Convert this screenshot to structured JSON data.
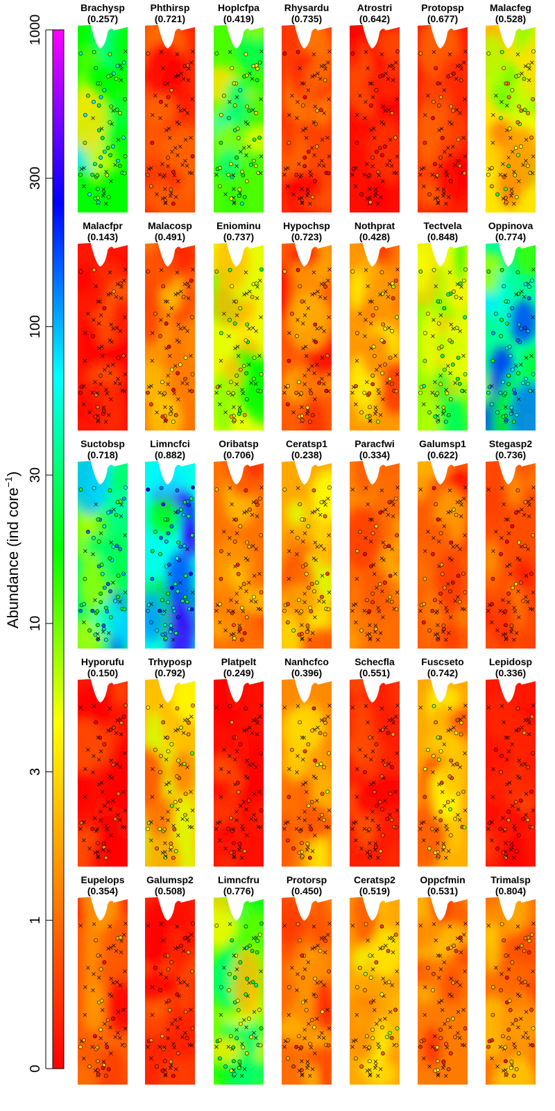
{
  "chart_data": {
    "type": "heatmap",
    "ylabel": "Abundance (ind core",
    "ylabel_sup": "−1",
    "ylabel_close": ")",
    "colorbar": {
      "ticks": [
        "0",
        "1",
        "3",
        "10",
        "30",
        "100",
        "300",
        "1000"
      ],
      "tick_values": [
        0,
        1,
        3,
        10,
        30,
        100,
        300,
        1000
      ],
      "colors": [
        "#ff0000",
        "#ff8000",
        "#ffff00",
        "#00ff00",
        "#00ffff",
        "#0000ff",
        "#ff00ff"
      ]
    },
    "species": [
      {
        "name": "Brachysp",
        "value": "(0.257)",
        "mean_level": 0.5
      },
      {
        "name": "Phthirsp",
        "value": "(0.721)",
        "mean_level": 0.05
      },
      {
        "name": "Hoplcfpa",
        "value": "(0.419)",
        "mean_level": 0.45
      },
      {
        "name": "Rhysardu",
        "value": "(0.735)",
        "mean_level": 0.08
      },
      {
        "name": "Atrostri",
        "value": "(0.642)",
        "mean_level": 0.02
      },
      {
        "name": "Protopsp",
        "value": "(0.677)",
        "mean_level": 0.04
      },
      {
        "name": "Malacfeg",
        "value": "(0.528)",
        "mean_level": 0.3
      },
      {
        "name": "Malacfpr",
        "value": "(0.143)",
        "mean_level": 0.03
      },
      {
        "name": "Malacosp",
        "value": "(0.491)",
        "mean_level": 0.15
      },
      {
        "name": "Eniominu",
        "value": "(0.737)",
        "mean_level": 0.35
      },
      {
        "name": "Hypochsp",
        "value": "(0.723)",
        "mean_level": 0.12
      },
      {
        "name": "Nothprat",
        "value": "(0.428)",
        "mean_level": 0.2
      },
      {
        "name": "Tectvela",
        "value": "(0.848)",
        "mean_level": 0.4
      },
      {
        "name": "Oppinova",
        "value": "(0.774)",
        "mean_level": 0.6
      },
      {
        "name": "Suctobsp",
        "value": "(0.718)",
        "mean_level": 0.58
      },
      {
        "name": "Limncfci",
        "value": "(0.882)",
        "mean_level": 0.65
      },
      {
        "name": "Oribatsp",
        "value": "(0.706)",
        "mean_level": 0.15
      },
      {
        "name": "Ceratsp1",
        "value": "(0.238)",
        "mean_level": 0.22
      },
      {
        "name": "Paracfwi",
        "value": "(0.334)",
        "mean_level": 0.14
      },
      {
        "name": "Galumsp1",
        "value": "(0.622)",
        "mean_level": 0.12
      },
      {
        "name": "Stegasp2",
        "value": "(0.736)",
        "mean_level": 0.1
      },
      {
        "name": "Hyporufu",
        "value": "(0.150)",
        "mean_level": 0.03
      },
      {
        "name": "Trhyposp",
        "value": "(0.792)",
        "mean_level": 0.25
      },
      {
        "name": "Platpelt",
        "value": "(0.249)",
        "mean_level": 0.02
      },
      {
        "name": "Nanhcfco",
        "value": "(0.396)",
        "mean_level": 0.18
      },
      {
        "name": "Schecfla",
        "value": "(0.551)",
        "mean_level": 0.04
      },
      {
        "name": "Fuscseto",
        "value": "(0.742)",
        "mean_level": 0.22
      },
      {
        "name": "Lepidosp",
        "value": "(0.336)",
        "mean_level": 0.03
      },
      {
        "name": "Eupelops",
        "value": "(0.354)",
        "mean_level": 0.12
      },
      {
        "name": "Galumsp2",
        "value": "(0.508)",
        "mean_level": 0.05
      },
      {
        "name": "Limncfru",
        "value": "(0.776)",
        "mean_level": 0.42
      },
      {
        "name": "Protorsp",
        "value": "(0.450)",
        "mean_level": 0.14
      },
      {
        "name": "Ceratsp2",
        "value": "(0.519)",
        "mean_level": 0.22
      },
      {
        "name": "Oppcfmin",
        "value": "(0.531)",
        "mean_level": 0.16
      },
      {
        "name": "Trimalsp",
        "value": "(0.804)",
        "mean_level": 0.15
      }
    ]
  }
}
